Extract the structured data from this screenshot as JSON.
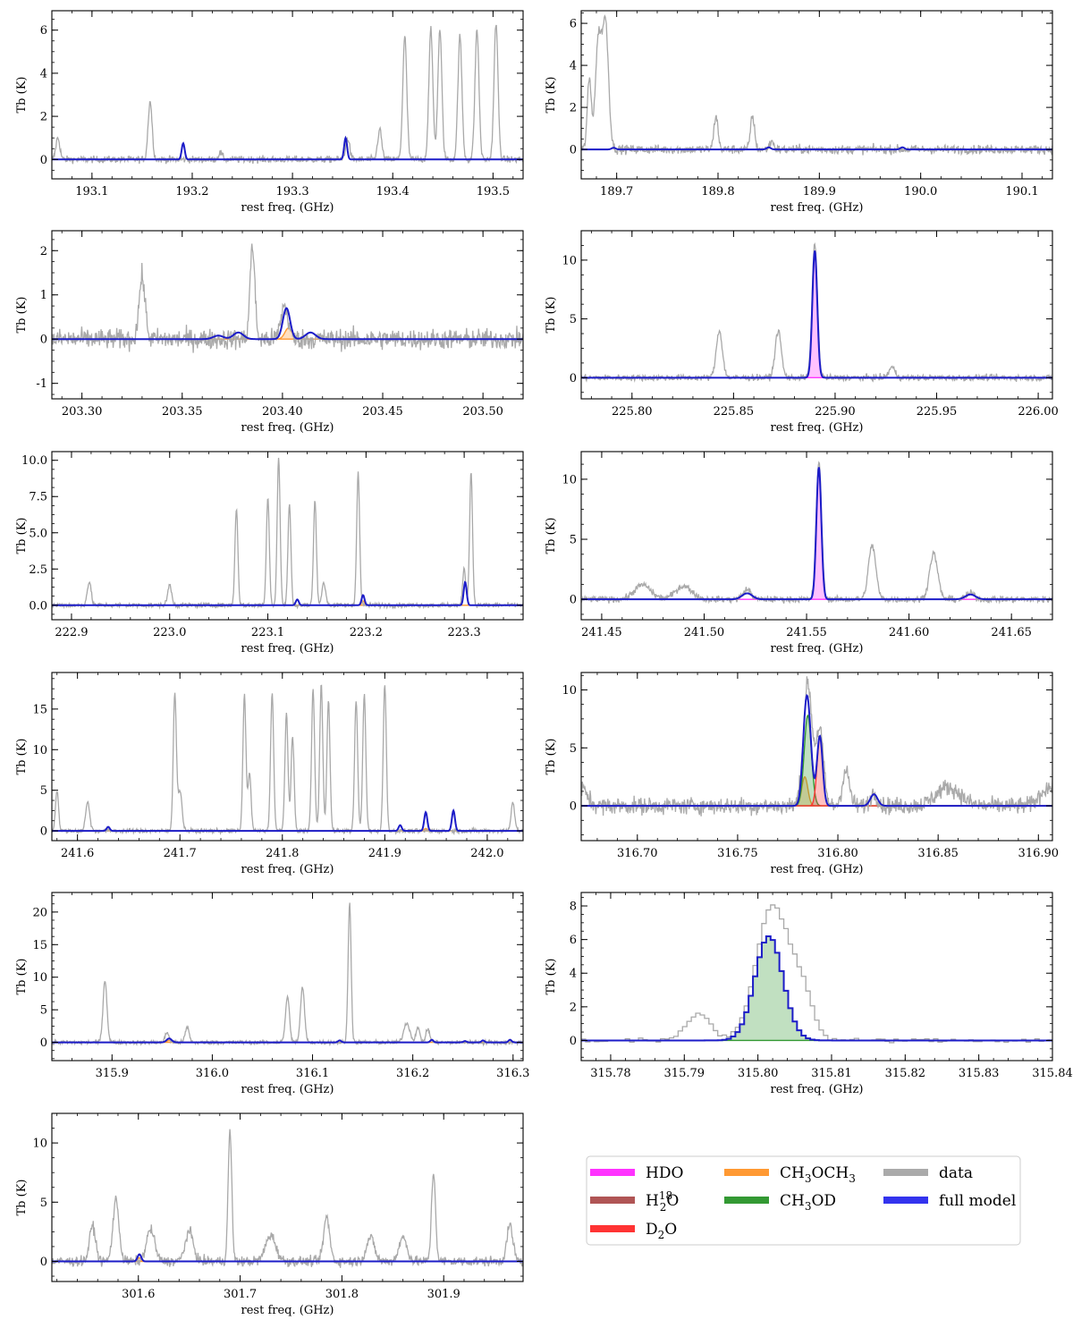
{
  "legend": {
    "items": [
      {
        "label": "HDO",
        "color": "#ff33ff"
      },
      {
        "label": "H",
        "sub": "2",
        "sup": "18",
        "tail": "O",
        "color": "#b05555"
      },
      {
        "label": "D",
        "sub": "2",
        "tail": "O",
        "color": "#ff3333"
      },
      {
        "label": "CH",
        "sub": "3",
        "tail": "OCH",
        "sub2": "3",
        "color": "#ff9933"
      },
      {
        "label": "CH",
        "sub": "3",
        "tail": "OD",
        "color": "#339933"
      },
      {
        "label": "data",
        "color": "#aaaaaa"
      },
      {
        "label": "full model",
        "color": "#3333ee"
      }
    ]
  },
  "colors": {
    "data": "#a9a9a9",
    "model": "#1c1cc8",
    "baseline": "#1c1cc8"
  },
  "chart_data": [
    {
      "type": "line",
      "xlabel": "rest freq. (GHz)",
      "ylabel": "Tb (K)",
      "xlim": [
        193.06,
        193.53
      ],
      "ylim": [
        -0.9,
        6.9
      ],
      "xticks": [
        193.1,
        193.2,
        193.3,
        193.4,
        193.5
      ],
      "yticks": [
        0,
        2,
        4,
        6
      ],
      "noise": 0.15,
      "data_lines": [
        [
          193.066,
          1.0,
          0.002
        ],
        [
          193.158,
          2.7,
          0.002
        ],
        [
          193.228,
          0.3,
          0.002
        ],
        [
          193.355,
          1.0,
          0.002
        ],
        [
          193.387,
          1.4,
          0.002
        ],
        [
          193.412,
          5.7,
          0.002
        ],
        [
          193.438,
          6.0,
          0.002
        ],
        [
          193.447,
          6.0,
          0.002
        ],
        [
          193.467,
          5.7,
          0.002
        ],
        [
          193.484,
          6.0,
          0.002
        ],
        [
          193.503,
          6.3,
          0.002
        ]
      ],
      "model_lines": [
        [
          193.191,
          0.75,
          0.0015
        ],
        [
          193.353,
          1.0,
          0.0015
        ]
      ],
      "components": []
    },
    {
      "type": "line",
      "xlabel": "rest freq. (GHz)",
      "ylabel": "Tb (K)",
      "xlim": [
        189.665,
        190.13
      ],
      "ylim": [
        -1.4,
        6.6
      ],
      "xticks": [
        189.7,
        189.8,
        189.9,
        190.0,
        190.1
      ],
      "yticks": [
        0,
        2,
        4,
        6
      ],
      "noise": 0.2,
      "data_lines": [
        [
          189.673,
          3.3,
          0.002
        ],
        [
          189.682,
          5.2,
          0.003
        ],
        [
          189.689,
          5.9,
          0.003
        ],
        [
          189.798,
          1.6,
          0.002
        ],
        [
          189.834,
          1.6,
          0.002
        ],
        [
          189.853,
          0.4,
          0.002
        ]
      ],
      "model_lines": [
        [
          189.697,
          0.08,
          0.002
        ],
        [
          189.85,
          0.1,
          0.002
        ],
        [
          189.982,
          0.1,
          0.002
        ]
      ],
      "components": []
    },
    {
      "type": "line",
      "xlabel": "rest freq. (GHz)",
      "ylabel": "Tb (K)",
      "xlim": [
        203.285,
        203.52
      ],
      "ylim": [
        -1.35,
        2.45
      ],
      "xticks": [
        203.3,
        203.35,
        203.4,
        203.45,
        203.5
      ],
      "yticks": [
        -1,
        0,
        1,
        2
      ],
      "noise": 0.22,
      "data_lines": [
        [
          203.33,
          1.4,
          0.0015
        ],
        [
          203.385,
          2.1,
          0.0012
        ],
        [
          203.401,
          0.75,
          0.0018
        ]
      ],
      "model_lines": [
        [
          203.368,
          0.08,
          0.0025
        ],
        [
          203.378,
          0.15,
          0.0025
        ],
        [
          203.402,
          0.7,
          0.0018
        ],
        [
          203.414,
          0.15,
          0.0025
        ]
      ],
      "components": [
        {
          "name": "CH3OCH3",
          "color": "#ff9933",
          "lines": [
            [
              203.403,
              0.25,
              0.0018
            ]
          ]
        }
      ]
    },
    {
      "type": "line",
      "xlabel": "rest freq. (GHz)",
      "ylabel": "Tb (K)",
      "xlim": [
        225.775,
        226.007
      ],
      "ylim": [
        -1.8,
        12.5
      ],
      "xticks": [
        225.8,
        225.85,
        225.9,
        225.95,
        226.0
      ],
      "yticks": [
        0,
        5,
        10
      ],
      "noise": 0.25,
      "data_lines": [
        [
          225.843,
          4.0,
          0.0015
        ],
        [
          225.872,
          4.0,
          0.0015
        ],
        [
          225.89,
          11.5,
          0.0013
        ],
        [
          225.928,
          0.9,
          0.0015
        ]
      ],
      "model_lines": [
        [
          225.89,
          10.8,
          0.0012
        ]
      ],
      "components": [
        {
          "name": "HDO",
          "color": "#ff33ff",
          "lines": [
            [
              225.89,
              10.8,
              0.0012
            ]
          ]
        }
      ]
    },
    {
      "type": "line",
      "xlabel": "rest freq. (GHz)",
      "ylabel": "Tb (K)",
      "xlim": [
        222.88,
        223.36
      ],
      "ylim": [
        -1.0,
        10.6
      ],
      "xticks": [
        222.9,
        223.0,
        223.1,
        223.2,
        223.3
      ],
      "yticks": [
        0.0,
        2.5,
        5.0,
        7.5,
        10.0
      ],
      "noise": 0.15,
      "data_lines": [
        [
          222.918,
          1.6,
          0.002
        ],
        [
          223.0,
          1.4,
          0.002
        ],
        [
          223.068,
          6.7,
          0.0015
        ],
        [
          223.1,
          7.5,
          0.0015
        ],
        [
          223.111,
          10.2,
          0.0015
        ],
        [
          223.122,
          7.0,
          0.0015
        ],
        [
          223.148,
          7.2,
          0.0015
        ],
        [
          223.157,
          1.5,
          0.002
        ],
        [
          223.192,
          9.2,
          0.0015
        ],
        [
          223.3,
          2.6,
          0.0015
        ],
        [
          223.307,
          9.2,
          0.0015
        ]
      ],
      "model_lines": [
        [
          223.13,
          0.4,
          0.0015
        ],
        [
          223.197,
          0.7,
          0.0015
        ],
        [
          223.301,
          1.6,
          0.0015
        ]
      ],
      "components": [
        {
          "name": "CH3OCH3",
          "color": "#ff9933",
          "lines": [
            [
              223.197,
              0.3,
              0.0015
            ]
          ]
        }
      ]
    },
    {
      "type": "line",
      "xlabel": "rest freq. (GHz)",
      "ylabel": "Tb (K)",
      "xlim": [
        241.44,
        241.67
      ],
      "ylim": [
        -1.7,
        12.3
      ],
      "xticks": [
        241.45,
        241.5,
        241.55,
        241.6,
        241.65
      ],
      "yticks": [
        0,
        5,
        10
      ],
      "noise": 0.25,
      "data_lines": [
        [
          241.47,
          1.2,
          0.004
        ],
        [
          241.49,
          1.1,
          0.004
        ],
        [
          241.521,
          0.8,
          0.002
        ],
        [
          241.556,
          11.5,
          0.0013
        ],
        [
          241.582,
          4.5,
          0.0018
        ],
        [
          241.612,
          3.8,
          0.002
        ],
        [
          241.63,
          0.5,
          0.002
        ]
      ],
      "model_lines": [
        [
          241.521,
          0.5,
          0.0025
        ],
        [
          241.556,
          11.0,
          0.0012
        ],
        [
          241.63,
          0.4,
          0.0025
        ]
      ],
      "components": [
        {
          "name": "HDO",
          "color": "#ff33ff",
          "lines": [
            [
              241.556,
              11.0,
              0.0012
            ]
          ]
        }
      ]
    },
    {
      "type": "line",
      "xlabel": "rest freq. (GHz)",
      "ylabel": "Tb (K)",
      "xlim": [
        241.575,
        242.035
      ],
      "ylim": [
        -1.2,
        19.5
      ],
      "xticks": [
        241.6,
        241.7,
        241.8,
        241.9,
        242.0
      ],
      "yticks": [
        0,
        5,
        10,
        15
      ],
      "noise": 0.25,
      "data_lines": [
        [
          241.58,
          5.0,
          0.0015
        ],
        [
          241.61,
          3.5,
          0.002
        ],
        [
          241.695,
          17.0,
          0.0015
        ],
        [
          241.7,
          5.0,
          0.002
        ],
        [
          241.763,
          16.7,
          0.0015
        ],
        [
          241.768,
          7.0,
          0.0015
        ],
        [
          241.79,
          17.0,
          0.0015
        ],
        [
          241.804,
          14.5,
          0.0015
        ],
        [
          241.81,
          11.5,
          0.0015
        ],
        [
          241.83,
          17.5,
          0.0015
        ],
        [
          241.838,
          18.0,
          0.0015
        ],
        [
          241.845,
          16.0,
          0.0015
        ],
        [
          241.872,
          16.0,
          0.0015
        ],
        [
          241.88,
          16.8,
          0.0015
        ],
        [
          241.9,
          18.0,
          0.0015
        ],
        [
          242.025,
          3.5,
          0.0018
        ]
      ],
      "model_lines": [
        [
          241.63,
          0.5,
          0.0015
        ],
        [
          241.915,
          0.7,
          0.0015
        ],
        [
          241.94,
          2.3,
          0.0015
        ],
        [
          241.967,
          2.5,
          0.0015
        ]
      ],
      "components": [
        {
          "name": "CH3OCH3",
          "color": "#ff9933",
          "lines": [
            [
              241.94,
              0.3,
              0.0015
            ]
          ]
        }
      ]
    },
    {
      "type": "line",
      "xlabel": "rest freq. (GHz)",
      "ylabel": "Tb (K)",
      "xlim": [
        316.672,
        316.907
      ],
      "ylim": [
        -3.0,
        11.5
      ],
      "xticks": [
        316.7,
        316.75,
        316.8,
        316.85,
        316.9
      ],
      "yticks": [
        0,
        5,
        10
      ],
      "noise": 0.7,
      "data_lines": [
        [
          316.672,
          1.5,
          0.003
        ],
        [
          316.785,
          10.5,
          0.0022
        ],
        [
          316.791,
          6.5,
          0.0018
        ],
        [
          316.804,
          3.0,
          0.0018
        ],
        [
          316.818,
          1.1,
          0.0018
        ],
        [
          316.855,
          1.6,
          0.006
        ],
        [
          316.905,
          1.6,
          0.004
        ]
      ],
      "model_lines": [
        [
          316.7835,
          2.5,
          0.0015
        ],
        [
          316.785,
          7.8,
          0.0018
        ],
        [
          316.791,
          6.0,
          0.0014
        ],
        [
          316.818,
          1.0,
          0.0018
        ]
      ],
      "components": [
        {
          "name": "CH3OCH3",
          "color": "#ff9933",
          "lines": [
            [
              316.7835,
              2.5,
              0.0015
            ]
          ]
        },
        {
          "name": "CH3OD",
          "color": "#339933",
          "lines": [
            [
              316.785,
              7.8,
              0.0018
            ]
          ]
        },
        {
          "name": "D2O",
          "color": "#ff3333",
          "lines": [
            [
              316.791,
              6.0,
              0.0014
            ]
          ]
        }
      ]
    },
    {
      "type": "line",
      "xlabel": "rest freq. (GHz)",
      "ylabel": "Tb (K)",
      "xlim": [
        315.84,
        316.31
      ],
      "ylim": [
        -2.8,
        23.0
      ],
      "xticks": [
        315.9,
        316.0,
        316.1,
        316.2,
        316.3
      ],
      "yticks": [
        0,
        5,
        10,
        15,
        20
      ],
      "noise": 0.3,
      "data_lines": [
        [
          315.893,
          9.5,
          0.002
        ],
        [
          315.955,
          1.5,
          0.002
        ],
        [
          315.975,
          2.3,
          0.002
        ],
        [
          316.075,
          7.0,
          0.002
        ],
        [
          316.09,
          8.4,
          0.002
        ],
        [
          316.137,
          21.5,
          0.0015
        ],
        [
          316.194,
          3.0,
          0.003
        ],
        [
          316.205,
          2.2,
          0.002
        ],
        [
          316.215,
          2.0,
          0.002
        ]
      ],
      "model_lines": [
        [
          315.957,
          0.6,
          0.0025
        ],
        [
          316.127,
          0.3,
          0.0015
        ],
        [
          316.219,
          0.4,
          0.0015
        ],
        [
          316.252,
          0.2,
          0.0015
        ],
        [
          316.27,
          0.3,
          0.0015
        ],
        [
          316.297,
          0.4,
          0.0015
        ]
      ],
      "components": [
        {
          "name": "CH3OCH3",
          "color": "#ff9933",
          "lines": [
            [
              315.957,
              0.3,
              0.0025
            ]
          ]
        }
      ]
    },
    {
      "type": "histogram",
      "xlabel": "rest freq. (GHz)",
      "ylabel": "Tb (K)",
      "xlim": [
        315.776,
        315.84
      ],
      "ylim": [
        -1.2,
        8.8
      ],
      "xticks": [
        315.78,
        315.79,
        315.8,
        315.81,
        315.82,
        315.83,
        315.84
      ],
      "yticks": [
        0,
        2,
        4,
        6,
        8
      ],
      "step": 0.0006,
      "noise": 0.12,
      "data_lines": [
        [
          315.792,
          1.6,
          0.0016
        ],
        [
          315.802,
          8.0,
          0.0022
        ],
        [
          315.806,
          2.5,
          0.0015
        ]
      ],
      "model_lines": [
        [
          315.8015,
          6.2,
          0.0019
        ]
      ],
      "components": [
        {
          "name": "CH3OD",
          "color": "#339933",
          "lines": [
            [
              315.8015,
              6.2,
              0.0019
            ]
          ]
        }
      ]
    },
    {
      "type": "line",
      "xlabel": "rest freq. (GHz)",
      "ylabel": "Tb (K)",
      "xlim": [
        301.515,
        301.978
      ],
      "ylim": [
        -1.7,
        12.5
      ],
      "xticks": [
        301.6,
        301.7,
        301.8,
        301.9
      ],
      "yticks": [
        0,
        5,
        10
      ],
      "noise": 0.4,
      "data_lines": [
        [
          301.555,
          3.0,
          0.003
        ],
        [
          301.578,
          5.2,
          0.003
        ],
        [
          301.612,
          2.7,
          0.004
        ],
        [
          301.65,
          2.5,
          0.004
        ],
        [
          301.69,
          11.0,
          0.0018
        ],
        [
          301.73,
          2.2,
          0.005
        ],
        [
          301.785,
          3.7,
          0.003
        ],
        [
          301.828,
          2.0,
          0.004
        ],
        [
          301.86,
          2.0,
          0.004
        ],
        [
          301.89,
          7.5,
          0.002
        ],
        [
          301.965,
          3.0,
          0.003
        ]
      ],
      "model_lines": [
        [
          301.601,
          0.6,
          0.0018
        ]
      ],
      "components": [
        {
          "name": "CH3OCH3",
          "color": "#ff9933",
          "lines": [
            [
              301.601,
              0.3,
              0.0018
            ]
          ]
        }
      ]
    }
  ]
}
